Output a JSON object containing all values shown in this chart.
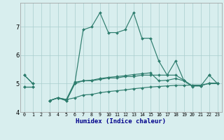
{
  "xlabel": "Humidex (Indice chaleur)",
  "x": [
    0,
    1,
    2,
    3,
    4,
    5,
    6,
    7,
    8,
    9,
    10,
    11,
    12,
    13,
    14,
    15,
    16,
    17,
    18,
    19,
    20,
    21,
    22,
    23
  ],
  "line1": [
    5.3,
    5.0,
    null,
    4.4,
    4.5,
    4.4,
    5.0,
    6.9,
    7.0,
    7.5,
    6.8,
    6.8,
    6.9,
    7.5,
    6.6,
    6.6,
    5.8,
    5.3,
    5.8,
    5.1,
    4.9,
    null,
    5.3,
    null
  ],
  "line2": [
    5.3,
    5.0,
    null,
    4.4,
    4.5,
    4.4,
    5.0,
    5.1,
    5.1,
    5.15,
    5.2,
    5.2,
    5.25,
    5.25,
    5.3,
    5.3,
    5.3,
    5.3,
    5.3,
    5.12,
    4.92,
    4.92,
    5.3,
    5.0
  ],
  "line3": [
    4.9,
    4.9,
    null,
    4.4,
    4.5,
    4.44,
    5.05,
    5.1,
    5.12,
    5.18,
    5.22,
    5.25,
    5.28,
    5.32,
    5.35,
    5.38,
    5.1,
    5.12,
    5.18,
    5.1,
    4.92,
    4.92,
    5.02,
    5.02
  ],
  "line4": [
    4.9,
    4.9,
    null,
    4.4,
    4.5,
    4.44,
    4.5,
    4.6,
    4.62,
    4.68,
    4.72,
    4.75,
    4.78,
    4.82,
    4.85,
    4.88,
    4.9,
    4.92,
    4.94,
    4.94,
    4.95,
    4.95,
    5.0,
    5.0
  ],
  "color": "#2e7d6e",
  "bg_color": "#d8eeee",
  "ylim_min": 4.0,
  "ylim_max": 7.85,
  "yticks": [
    4,
    5,
    6,
    7
  ],
  "grid_color": "#aacece"
}
